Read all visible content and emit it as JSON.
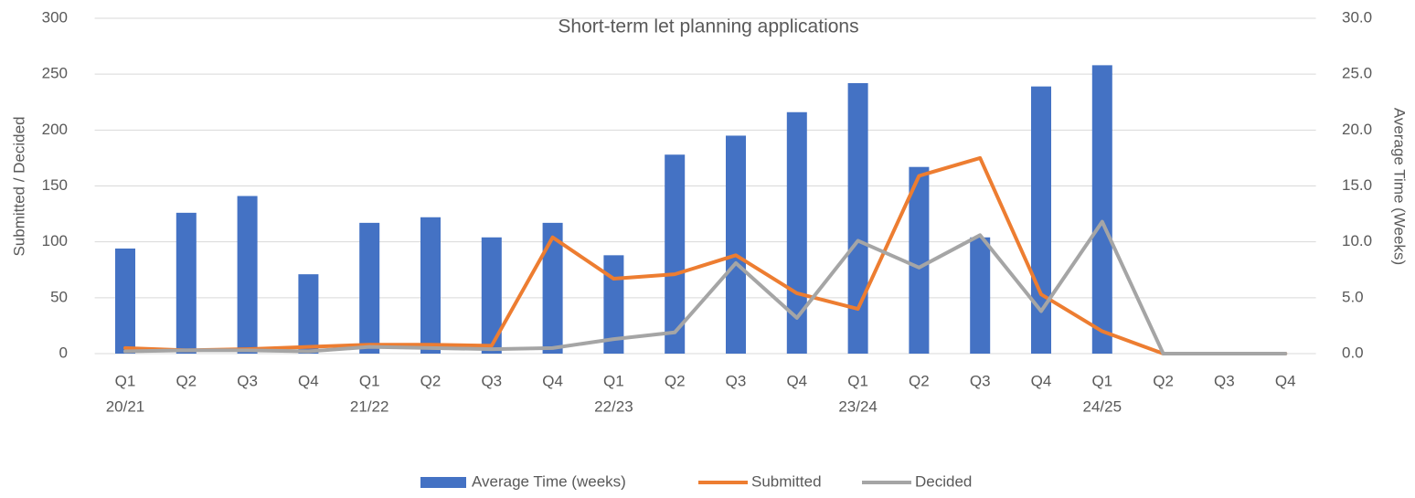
{
  "chart_data": {
    "type": "bar-line",
    "title": "Short-term let planning applications",
    "y_label": "Submitted / Decided",
    "y2_label": "Average Time (Weeks)",
    "categories": [
      "Q1",
      "Q2",
      "Q3",
      "Q4",
      "Q1",
      "Q2",
      "Q3",
      "Q4",
      "Q1",
      "Q2",
      "Q3",
      "Q4",
      "Q1",
      "Q2",
      "Q3",
      "Q4",
      "Q1",
      "Q2",
      "Q3",
      "Q4"
    ],
    "category_groups": [
      "20/21",
      null,
      null,
      null,
      "21/22",
      null,
      null,
      null,
      "22/23",
      null,
      null,
      null,
      "23/24",
      null,
      null,
      null,
      "24/25",
      null,
      null,
      null
    ],
    "series": [
      {
        "name": "Average Time (weeks)",
        "type": "bar",
        "axis": "y2",
        "color": "#4472c4",
        "values": [
          9.4,
          12.6,
          14.1,
          7.1,
          11.7,
          12.2,
          10.4,
          11.7,
          8.8,
          17.8,
          19.5,
          21.6,
          24.2,
          16.7,
          10.4,
          23.9,
          25.8,
          0,
          0,
          0
        ]
      },
      {
        "name": "Submitted",
        "type": "line",
        "color": "#ed7d31",
        "values": [
          5,
          3,
          4,
          6,
          8,
          8,
          7,
          104,
          67,
          71,
          88,
          54,
          40,
          159,
          175,
          53,
          20,
          0,
          0,
          0
        ]
      },
      {
        "name": "Decided",
        "type": "line",
        "color": "#a5a5a5",
        "values": [
          2,
          3,
          3,
          2,
          6,
          5,
          4,
          5,
          13,
          19,
          81,
          32,
          101,
          77,
          106,
          38,
          118,
          0,
          0,
          0
        ]
      }
    ],
    "ylim": [
      0,
      300
    ],
    "yticks": [
      0,
      50,
      100,
      150,
      200,
      250,
      300
    ],
    "y2lim": [
      0,
      30
    ],
    "y2ticks": [
      {
        "value": 0,
        "label": "0.0"
      },
      {
        "value": 5,
        "label": "5.0"
      },
      {
        "value": 10,
        "label": "10.0"
      },
      {
        "value": 15,
        "label": "15.0"
      },
      {
        "value": 20,
        "label": "20.0"
      },
      {
        "value": 25,
        "label": "25.0"
      },
      {
        "value": 30,
        "label": "30.0"
      }
    ],
    "grid": true,
    "legend": "bottom"
  }
}
